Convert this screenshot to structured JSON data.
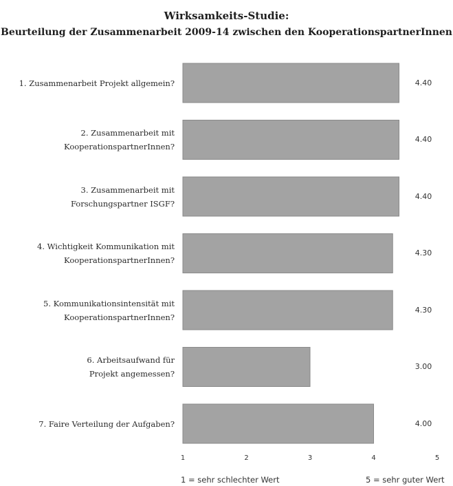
{
  "chart_data": {
    "type": "bar",
    "orientation": "horizontal",
    "title": "Wirksamkeits-Studie:",
    "subtitle": "Beurteilung der Zusammenarbeit 2009-14 zwischen den KooperationspartnerInnen",
    "categories": [
      [
        "1. Zusammenarbeit Projekt allgemein?"
      ],
      [
        "2. Zusammenarbeit mit",
        "KooperationspartnerInnen?"
      ],
      [
        "3. Zusammenarbeit mit",
        "Forschungspartner ISGF?"
      ],
      [
        "4. Wichtigkeit Kommunikation mit",
        "KooperationspartnerInnen?"
      ],
      [
        "5. Kommunikationsintensität mit",
        "KooperationspartnerInnen?"
      ],
      [
        "6. Arbeitsaufwand für",
        "Projekt angemessen?"
      ],
      [
        "7. Faire Verteilung der Aufgaben?"
      ]
    ],
    "values": [
      4.4,
      4.4,
      4.4,
      4.3,
      4.3,
      3.0,
      4.0
    ],
    "value_labels": [
      "4.40",
      "4.40",
      "4.40",
      "4.30",
      "4.30",
      "3.00",
      "4.00"
    ],
    "xlim": [
      1,
      5
    ],
    "xticks": [
      "1",
      "2",
      "3",
      "4",
      "5"
    ],
    "scale_min_label": "1 = sehr schlechter Wert",
    "scale_max_label": "5 = sehr guter Wert",
    "bar_color": "#a3a3a3",
    "bar_border_color": "#8a8a8a",
    "grid": false
  }
}
